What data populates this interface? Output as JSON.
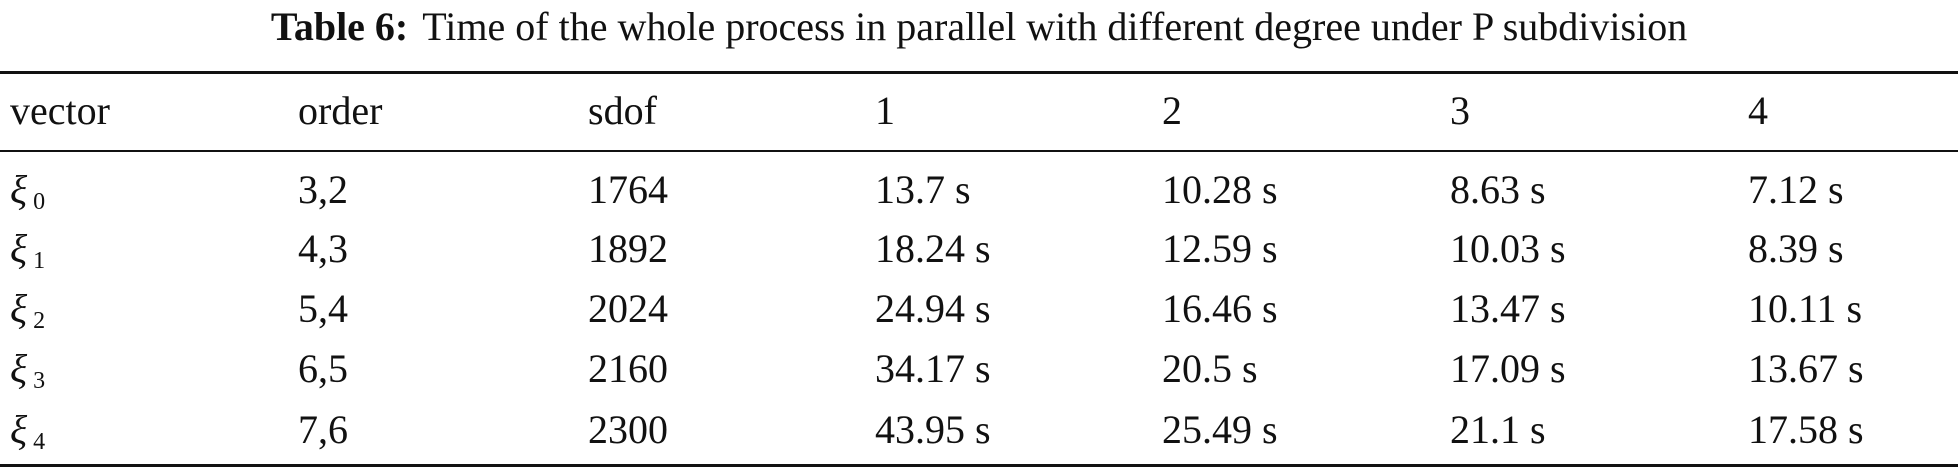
{
  "caption": {
    "label": "Table 6:",
    "text": "Time of the whole process in parallel with different degree under P subdivision"
  },
  "table": {
    "header": [
      "vector",
      "order",
      "sdof",
      "1",
      "2",
      "3",
      "4"
    ],
    "rows": [
      [
        {
          "symbol": "ξ",
          "subscript": "0"
        },
        "3,2",
        "1764",
        "13.7 s",
        "10.28 s",
        "8.63 s",
        "7.12 s"
      ],
      [
        {
          "symbol": "ξ",
          "subscript": "1"
        },
        "4,3",
        "1892",
        "18.24 s",
        "12.59 s",
        "10.03 s",
        "8.39 s"
      ],
      [
        {
          "symbol": "ξ",
          "subscript": "2"
        },
        "5,4",
        "2024",
        "24.94 s",
        "16.46 s",
        "13.47 s",
        "10.11 s"
      ],
      [
        {
          "symbol": "ξ",
          "subscript": "3"
        },
        "6,5",
        "2160",
        "34.17 s",
        "20.5 s",
        "17.09 s",
        "13.67 s"
      ],
      [
        {
          "symbol": "ξ",
          "subscript": "4"
        },
        "7,6",
        "2300",
        "43.95 s",
        "25.49 s",
        "21.1 s",
        "17.58 s"
      ]
    ]
  }
}
